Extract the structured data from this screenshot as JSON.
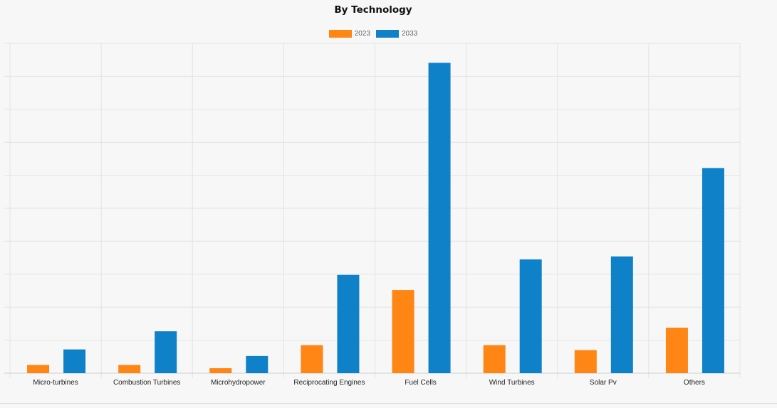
{
  "chart_data": {
    "type": "bar",
    "title": "By Technology",
    "categories": [
      "Micro-turbines",
      "Combustion Turbines",
      "Microhydropower",
      "Reciprocating Engines",
      "Fuel Cells",
      "Wind Turbines",
      "Solar Pv",
      "Others"
    ],
    "series": [
      {
        "name": "2023",
        "color": "#ff8515",
        "values": [
          2.5,
          2.5,
          1.5,
          8.5,
          25.2,
          8.5,
          7.0,
          13.8
        ]
      },
      {
        "name": "2033",
        "color": "#0f81c9",
        "values": [
          7.2,
          12.7,
          5.2,
          29.8,
          94.1,
          34.5,
          35.4,
          62.2
        ]
      }
    ],
    "ylim": [
      0,
      100
    ],
    "grid": true,
    "legend_position": "top-center",
    "xlabel": "",
    "ylabel": ""
  }
}
